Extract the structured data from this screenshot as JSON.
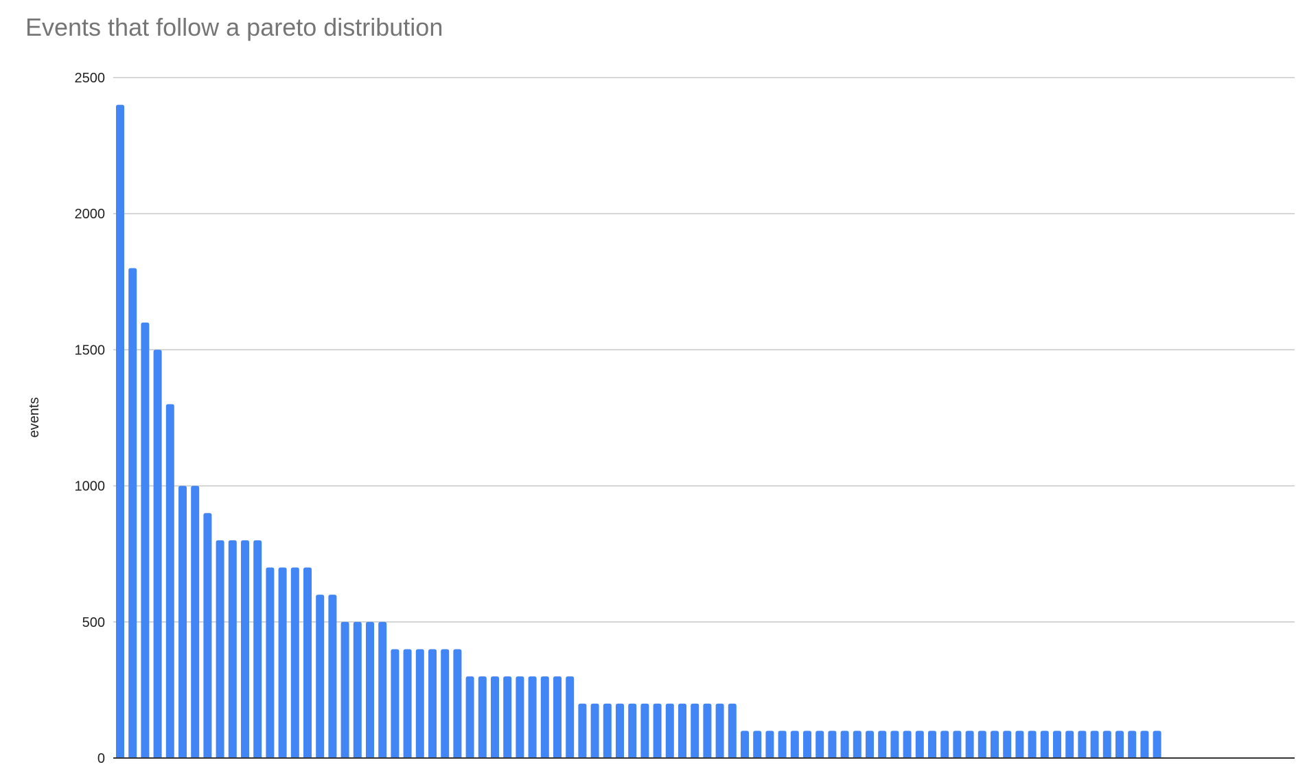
{
  "chart_data": {
    "type": "bar",
    "title": "Events that follow a pareto distribution",
    "xlabel": "",
    "ylabel": "events",
    "ylim": [
      0,
      2500
    ],
    "yticks": [
      "0",
      "500",
      "1000",
      "1500",
      "2000",
      "2500"
    ],
    "grid": true,
    "legend": "none",
    "bar_color": "#4285f4",
    "values": [
      2400,
      1800,
      1600,
      1500,
      1300,
      1000,
      1000,
      900,
      800,
      800,
      800,
      800,
      700,
      700,
      700,
      700,
      600,
      600,
      500,
      500,
      500,
      500,
      400,
      400,
      400,
      400,
      400,
      400,
      300,
      300,
      300,
      300,
      300,
      300,
      300,
      300,
      300,
      200,
      200,
      200,
      200,
      200,
      200,
      200,
      200,
      200,
      200,
      200,
      200,
      200,
      100,
      100,
      100,
      100,
      100,
      100,
      100,
      100,
      100,
      100,
      100,
      100,
      100,
      100,
      100,
      100,
      100,
      100,
      100,
      100,
      100,
      100,
      100,
      100,
      100,
      100,
      100,
      100,
      100,
      100,
      100,
      100,
      100,
      100
    ]
  }
}
